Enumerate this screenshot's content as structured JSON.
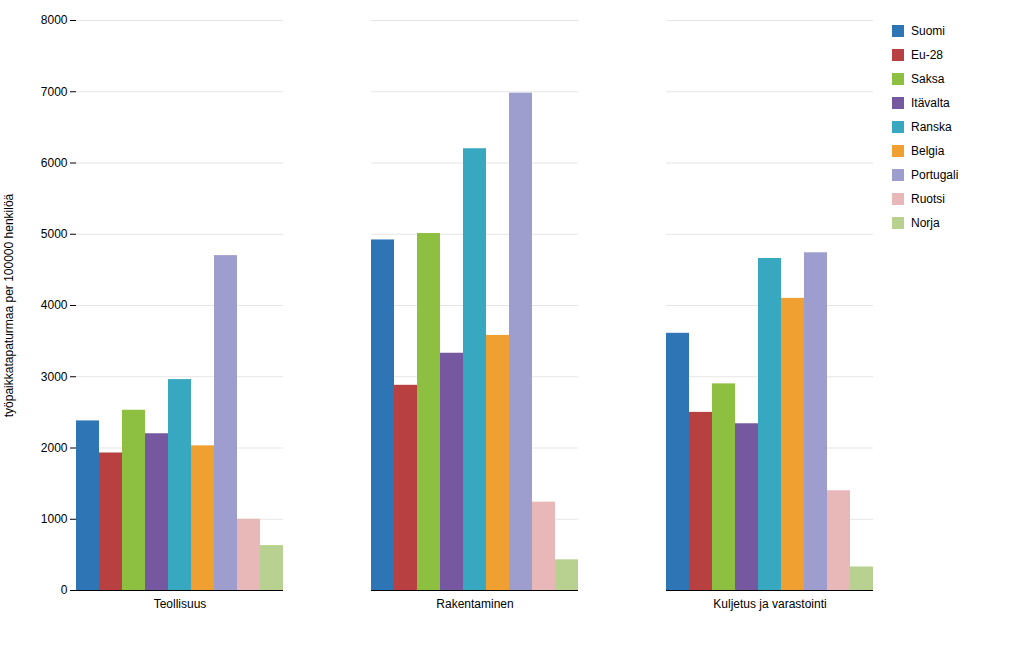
{
  "chart_data": {
    "type": "bar",
    "categories": [
      "Teollisuus",
      "Rakentaminen",
      "Kuljetus ja varastointi"
    ],
    "series": [
      {
        "name": "Suomi",
        "color": "#2E75B6",
        "values": [
          2380,
          4920,
          3610
        ]
      },
      {
        "name": "Eu-28",
        "color": "#B94040",
        "values": [
          1930,
          2880,
          2500
        ]
      },
      {
        "name": "Saksa",
        "color": "#8DC040",
        "values": [
          2530,
          5010,
          2900
        ]
      },
      {
        "name": "Itävalta",
        "color": "#7558A0",
        "values": [
          2200,
          3330,
          2340
        ]
      },
      {
        "name": "Ranska",
        "color": "#38A8C0",
        "values": [
          2960,
          6200,
          4660
        ]
      },
      {
        "name": "Belgia",
        "color": "#F0A030",
        "values": [
          2030,
          3580,
          4100
        ]
      },
      {
        "name": "Portugali",
        "color": "#9E9ECE",
        "values": [
          4700,
          6980,
          4740
        ]
      },
      {
        "name": "Ruotsi",
        "color": "#E8B8B8",
        "values": [
          1000,
          1240,
          1400
        ]
      },
      {
        "name": "Norja",
        "color": "#B8D090",
        "values": [
          630,
          430,
          330
        ]
      }
    ],
    "ylabel": "työpaikkatapaturmaa per 100000 henkilöä",
    "ylim": [
      0,
      8000
    ],
    "yticks": [
      0,
      1000,
      2000,
      3000,
      4000,
      5000,
      6000,
      7000,
      8000
    ],
    "grid": true,
    "legend": "right"
  }
}
